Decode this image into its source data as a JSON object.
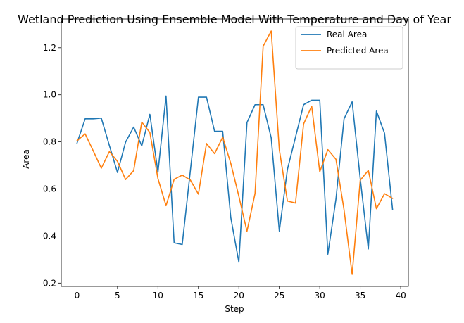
{
  "chart_data": {
    "type": "line",
    "title": "Wetland Prediction Using Ensemble Model With Temperature and Day of Year",
    "xlabel": "Step",
    "ylabel": "Area",
    "xlim": [
      -1.95,
      40.95
    ],
    "ylim": [
      0.186,
      1.322
    ],
    "xticks": [
      0,
      5,
      10,
      15,
      20,
      25,
      30,
      35,
      40
    ],
    "yticks": [
      0.2,
      0.4,
      0.6,
      0.8,
      1.0,
      1.2
    ],
    "xtick_labels": [
      "0",
      "5",
      "10",
      "15",
      "20",
      "25",
      "30",
      "35",
      "40"
    ],
    "ytick_labels": [
      "0.2",
      "0.4",
      "0.6",
      "0.8",
      "1.0",
      "1.2"
    ],
    "grid": false,
    "legend_position": "top-right",
    "x": [
      0,
      1,
      2,
      3,
      4,
      5,
      6,
      7,
      8,
      9,
      10,
      11,
      12,
      13,
      14,
      15,
      16,
      17,
      18,
      19,
      20,
      21,
      22,
      23,
      24,
      25,
      26,
      27,
      28,
      29,
      30,
      31,
      32,
      33,
      34,
      35,
      36,
      37,
      38,
      39
    ],
    "series": [
      {
        "name": "Real Area",
        "color": "#1f77b4",
        "values": [
          0.795,
          0.898,
          0.898,
          0.901,
          0.784,
          0.67,
          0.799,
          0.863,
          0.783,
          0.917,
          0.671,
          0.995,
          0.371,
          0.364,
          0.676,
          0.99,
          0.99,
          0.845,
          0.845,
          0.479,
          0.289,
          0.882,
          0.958,
          0.958,
          0.817,
          0.421,
          0.683,
          0.82,
          0.958,
          0.977,
          0.977,
          0.323,
          0.557,
          0.898,
          0.97,
          0.644,
          0.345,
          0.931,
          0.837,
          0.512
        ]
      },
      {
        "name": "Predicted Area",
        "color": "#ff7f0e",
        "values": [
          0.805,
          0.834,
          0.762,
          0.688,
          0.759,
          0.717,
          0.64,
          0.678,
          0.884,
          0.84,
          0.644,
          0.529,
          0.641,
          0.659,
          0.638,
          0.578,
          0.793,
          0.75,
          0.82,
          0.709,
          0.569,
          0.42,
          0.581,
          1.206,
          1.271,
          0.767,
          0.549,
          0.54,
          0.876,
          0.952,
          0.673,
          0.767,
          0.726,
          0.511,
          0.237,
          0.637,
          0.679,
          0.516,
          0.58,
          0.56
        ]
      }
    ]
  }
}
